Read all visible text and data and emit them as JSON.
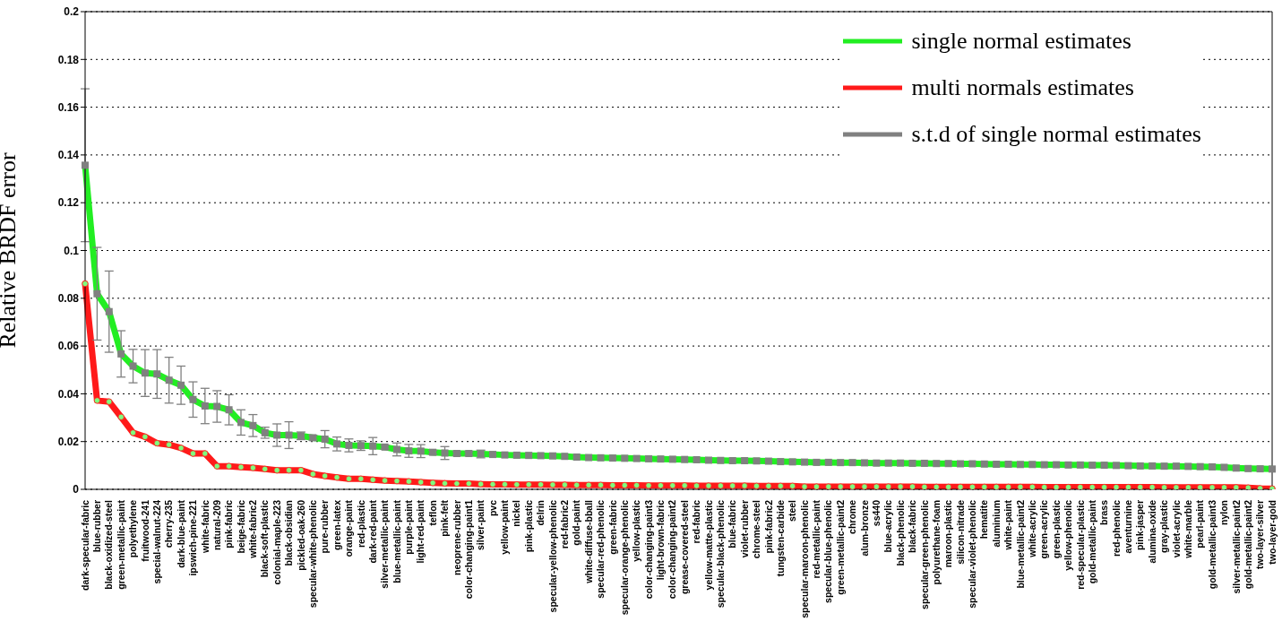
{
  "chart_data": {
    "type": "line",
    "ylabel": "Relative BRDF error",
    "categories": [
      "dark-specular-fabric",
      "blue-rubber",
      "black-oxidized-steel",
      "green-metallic-paint",
      "polyethylene",
      "fruitwood-241",
      "special-walnut-224",
      "cherry-235",
      "dark-blue-paint",
      "ipswich-pine-221",
      "white-fabric",
      "natural-209",
      "pink-fabric",
      "beige-fabric",
      "white-fabric2",
      "black-soft-plastic",
      "colonial-maple-223",
      "black-obsidian",
      "pickled-oak-260",
      "specular-white-phenolic",
      "pure-rubber",
      "green-latex",
      "orange-paint",
      "red-plastic",
      "dark-red-paint",
      "silver-metallic-paint",
      "blue-metallic-paint",
      "purple-paint",
      "light-red-paint",
      "teflon",
      "pink-felt",
      "neoprene-rubber",
      "color-changing-paint1",
      "silver-paint",
      "pvc",
      "yellow-paint",
      "nickel",
      "pink-plastic",
      "delrin",
      "specular-yellow-phenolic",
      "red-fabric2",
      "gold-paint",
      "white-diffuse-bball",
      "specular-red-phenolic",
      "green-fabric",
      "specular-orange-phenolic",
      "yellow-plastic",
      "color-changing-paint3",
      "light-brown-fabric",
      "color-changing-paint2",
      "grease-covered-steel",
      "red-fabric",
      "yellow-matte-plastic",
      "specular-black-phenolic",
      "blue-fabric",
      "violet-rubber",
      "chrome-steel",
      "pink-fabric2",
      "tungsten-carbide",
      "steel",
      "specular-maroon-phenolic",
      "red-metallic-paint",
      "specular-blue-phenolic",
      "green-metallic-paint2",
      "chrome",
      "alum-bronze",
      "ss440",
      "blue-acrylic",
      "black-phenolic",
      "black-fabric",
      "specular-green-phenolic",
      "polyurethane-foam",
      "maroon-plastic",
      "silicon-nitrade",
      "specular-violet-phenolic",
      "hematite",
      "aluminium",
      "white-paint",
      "blue-metallic-paint2",
      "white-acrylic",
      "green-acrylic",
      "green-plastic",
      "yellow-phenolic",
      "red-specular-plastic",
      "gold-metallic-paint",
      "brass",
      "red-phenolic",
      "aventurnine",
      "pink-jasper",
      "alumina-oxide",
      "gray-plastic",
      "violet-acrylic",
      "white-marble",
      "pearl-paint",
      "gold-metallic-paint3",
      "nylon",
      "silver-metallic-paint2",
      "gold-metallic-paint2",
      "two-layer-silver",
      "two-layer-gold"
    ],
    "series": [
      {
        "name": "single normal estimates",
        "color": "#22ee22",
        "marker": "none",
        "values": [
          0.1357,
          0.0819,
          0.0744,
          0.0567,
          0.0516,
          0.0487,
          0.0483,
          0.0457,
          0.0436,
          0.0376,
          0.0349,
          0.0347,
          0.0333,
          0.028,
          0.0267,
          0.0237,
          0.0227,
          0.0227,
          0.0224,
          0.0216,
          0.021,
          0.019,
          0.0184,
          0.0183,
          0.0181,
          0.0177,
          0.0167,
          0.0161,
          0.016,
          0.0155,
          0.0152,
          0.015,
          0.015,
          0.0148,
          0.0146,
          0.0144,
          0.0143,
          0.0142,
          0.0141,
          0.014,
          0.0138,
          0.0135,
          0.0133,
          0.0132,
          0.0131,
          0.013,
          0.0129,
          0.0128,
          0.0127,
          0.0126,
          0.0125,
          0.0124,
          0.0122,
          0.0121,
          0.012,
          0.012,
          0.0119,
          0.0118,
          0.0116,
          0.0115,
          0.0114,
          0.0113,
          0.0113,
          0.0112,
          0.0112,
          0.0111,
          0.011,
          0.011,
          0.011,
          0.0109,
          0.0109,
          0.0108,
          0.0108,
          0.0107,
          0.0107,
          0.0106,
          0.0105,
          0.0105,
          0.0104,
          0.0104,
          0.0103,
          0.0103,
          0.0102,
          0.0102,
          0.0101,
          0.0101,
          0.01,
          0.0099,
          0.0098,
          0.0098,
          0.0097,
          0.0097,
          0.0096,
          0.0095,
          0.0094,
          0.0092,
          0.0089,
          0.0087,
          0.0086,
          0.0085
        ]
      },
      {
        "name": "multi normals estimates",
        "color": "#ff1a1a",
        "marker": "circle",
        "values": [
          0.0861,
          0.0372,
          0.0367,
          0.0303,
          0.0237,
          0.022,
          0.0193,
          0.0187,
          0.0173,
          0.015,
          0.015,
          0.0097,
          0.0097,
          0.0093,
          0.009,
          0.0085,
          0.008,
          0.008,
          0.008,
          0.0064,
          0.0056,
          0.005,
          0.0044,
          0.0044,
          0.004,
          0.0037,
          0.0035,
          0.0033,
          0.003,
          0.0027,
          0.0025,
          0.0024,
          0.0024,
          0.0022,
          0.0021,
          0.0021,
          0.002,
          0.002,
          0.002,
          0.0019,
          0.0019,
          0.0018,
          0.0018,
          0.0018,
          0.0017,
          0.0017,
          0.0017,
          0.0016,
          0.0016,
          0.0016,
          0.0016,
          0.0015,
          0.0015,
          0.0015,
          0.0015,
          0.0015,
          0.0014,
          0.0014,
          0.0014,
          0.0014,
          0.0011,
          0.0011,
          0.0011,
          0.0011,
          0.0011,
          0.0011,
          0.0011,
          0.0011,
          0.0011,
          0.0011,
          0.001,
          0.001,
          0.001,
          0.001,
          0.001,
          0.001,
          0.001,
          0.001,
          0.001,
          0.001,
          0.0009,
          0.0009,
          0.0009,
          0.0009,
          0.0009,
          0.0009,
          0.0009,
          0.0009,
          0.0009,
          0.0009,
          0.0008,
          0.0008,
          0.0008,
          0.0008,
          0.0008,
          0.0008,
          0.0008,
          0.0007,
          0.0004,
          0.0003
        ]
      },
      {
        "name": "s.t.d of single normal estimates",
        "type": "scatter",
        "color": "#808080",
        "marker": "square",
        "values": [
          0.1357,
          0.0819,
          0.0744,
          0.0567,
          0.0516,
          0.0487,
          0.0483,
          0.0457,
          0.0436,
          0.0376,
          0.0349,
          0.0347,
          0.0333,
          0.028,
          0.0267,
          0.0237,
          0.0227,
          0.0227,
          0.0224,
          0.0216,
          0.021,
          0.019,
          0.0184,
          0.0183,
          0.0181,
          0.0177,
          0.0167,
          0.0161,
          0.016,
          0.0155,
          0.0152,
          0.015,
          0.015,
          0.0148,
          0.0146,
          0.0144,
          0.0143,
          0.0142,
          0.0141,
          0.014,
          0.0138,
          0.0135,
          0.0133,
          0.0132,
          0.0131,
          0.013,
          0.0129,
          0.0128,
          0.0127,
          0.0126,
          0.0125,
          0.0124,
          0.0122,
          0.0121,
          0.012,
          0.012,
          0.0119,
          0.0118,
          0.0116,
          0.0115,
          0.0114,
          0.0113,
          0.0113,
          0.0112,
          0.0112,
          0.0111,
          0.011,
          0.011,
          0.011,
          0.0109,
          0.0109,
          0.0108,
          0.0108,
          0.0107,
          0.0107,
          0.0106,
          0.0105,
          0.0105,
          0.0104,
          0.0104,
          0.0103,
          0.0103,
          0.0102,
          0.0102,
          0.0101,
          0.0101,
          0.01,
          0.0099,
          0.0098,
          0.0098,
          0.0097,
          0.0097,
          0.0096,
          0.0095,
          0.0094,
          0.0092,
          0.0089,
          0.0087,
          0.0086,
          0.0085
        ],
        "errors": [
          0.032,
          0.0194,
          0.017,
          0.0097,
          0.007,
          0.0098,
          0.0102,
          0.0096,
          0.008,
          0.0074,
          0.0074,
          0.0066,
          0.0063,
          0.0053,
          0.0046,
          0.0023,
          0.0047,
          0.0056,
          0.0016,
          0.001,
          0.0036,
          0.0029,
          0.0027,
          0.002,
          0.0036,
          0.0008,
          0.0027,
          0.0027,
          0.0027,
          0.0008,
          0.0027,
          0.0008,
          0.0008,
          0.0016,
          null,
          null,
          null,
          null,
          null,
          null,
          null,
          null,
          null,
          null,
          null,
          null,
          null,
          null,
          null,
          null,
          null,
          null,
          null,
          null,
          null,
          null,
          null,
          null,
          null,
          null,
          null,
          null,
          null,
          null,
          null,
          null,
          null,
          null,
          null,
          null,
          null,
          null,
          null,
          null,
          null,
          null,
          null,
          null,
          null,
          null,
          null,
          null,
          null,
          null,
          null,
          null,
          null,
          null,
          null,
          null,
          null,
          null,
          null,
          null,
          null,
          null,
          null,
          null,
          null,
          null
        ]
      }
    ],
    "ylim": [
      0,
      0.2
    ],
    "yticks": [
      0,
      0.02,
      0.04,
      0.06,
      0.08,
      0.1,
      0.12,
      0.14,
      0.16,
      0.18,
      0.2
    ],
    "grid": "y",
    "legend": "top right",
    "line_style": "solid"
  }
}
